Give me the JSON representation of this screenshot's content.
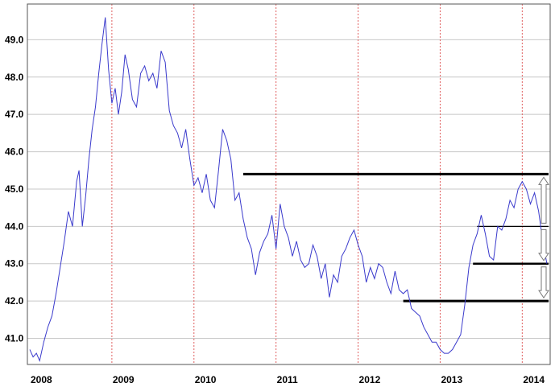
{
  "colors": {
    "line": "#3a3acc",
    "grid": "#c8c8c8",
    "year_grid": "#e06060",
    "level_line": "#000000",
    "arrow": "#777777"
  },
  "chart_data": {
    "type": "line",
    "title": "",
    "xlabel": "",
    "ylabel": "",
    "xlim": [
      2008.0,
      2014.35
    ],
    "ylim": [
      40.3,
      50.0
    ],
    "grid": true,
    "legend": "none",
    "yticks": [
      41.0,
      42.0,
      43.0,
      44.0,
      45.0,
      46.0,
      47.0,
      48.0,
      49.0
    ],
    "ytick_labels": [
      "41.0",
      "42.0",
      "43.0",
      "44.0",
      "45.0",
      "46.0",
      "47.0",
      "48.0",
      "49.0"
    ],
    "xticks": [
      2008,
      2009,
      2010,
      2011,
      2012,
      2013,
      2014
    ],
    "xtick_labels": [
      "2008",
      "2009",
      "2010",
      "2011",
      "2012",
      "2013",
      "2014"
    ],
    "series": [
      {
        "x": [
          2008.0,
          2008.04,
          2008.08,
          2008.12,
          2008.17,
          2008.22,
          2008.27,
          2008.32,
          2008.37,
          2008.42,
          2008.47,
          2008.52,
          2008.57,
          2008.6,
          2008.64,
          2008.68,
          2008.72,
          2008.76,
          2008.8,
          2008.84,
          2008.88,
          2008.92,
          2008.96,
          2009.0,
          2009.04,
          2009.08,
          2009.12,
          2009.16,
          2009.2,
          2009.25,
          2009.3,
          2009.35,
          2009.4,
          2009.45,
          2009.5,
          2009.55,
          2009.6,
          2009.65,
          2009.7,
          2009.75,
          2009.8,
          2009.85,
          2009.9,
          2009.95,
          2010.0,
          2010.05,
          2010.1,
          2010.15,
          2010.2,
          2010.25,
          2010.3,
          2010.35,
          2010.4,
          2010.45,
          2010.5,
          2010.55,
          2010.6,
          2010.65,
          2010.7,
          2010.75,
          2010.8,
          2010.85,
          2010.9,
          2010.95,
          2011.0,
          2011.05,
          2011.1,
          2011.15,
          2011.2,
          2011.25,
          2011.3,
          2011.35,
          2011.4,
          2011.45,
          2011.5,
          2011.55,
          2011.6,
          2011.65,
          2011.7,
          2011.75,
          2011.8,
          2011.85,
          2011.9,
          2011.95,
          2012.0,
          2012.05,
          2012.1,
          2012.15,
          2012.2,
          2012.25,
          2012.3,
          2012.35,
          2012.4,
          2012.45,
          2012.5,
          2012.55,
          2012.6,
          2012.65,
          2012.7,
          2012.75,
          2012.8,
          2012.85,
          2012.9,
          2012.95,
          2013.0,
          2013.05,
          2013.1,
          2013.15,
          2013.2,
          2013.25,
          2013.3,
          2013.35,
          2013.4,
          2013.45,
          2013.5,
          2013.55,
          2013.6,
          2013.65,
          2013.7,
          2013.75,
          2013.8,
          2013.85,
          2013.9,
          2013.95,
          2014.0,
          2014.05,
          2014.1,
          2014.15,
          2014.2,
          2014.25,
          2014.3
        ],
        "values": [
          40.7,
          40.5,
          40.6,
          40.4,
          40.9,
          41.3,
          41.6,
          42.2,
          42.9,
          43.6,
          44.4,
          44.0,
          45.2,
          45.5,
          44.0,
          44.8,
          45.8,
          46.6,
          47.2,
          48.1,
          48.9,
          49.6,
          48.2,
          47.3,
          47.7,
          47.0,
          47.6,
          48.6,
          48.2,
          47.4,
          47.2,
          48.1,
          48.3,
          47.9,
          48.1,
          47.7,
          48.7,
          48.4,
          47.1,
          46.7,
          46.5,
          46.1,
          46.6,
          45.8,
          45.1,
          45.3,
          44.9,
          45.4,
          44.7,
          44.5,
          45.5,
          46.6,
          46.3,
          45.8,
          44.7,
          44.9,
          44.2,
          43.7,
          43.4,
          42.7,
          43.3,
          43.6,
          43.8,
          44.3,
          43.4,
          44.6,
          44.0,
          43.7,
          43.2,
          43.6,
          43.1,
          42.9,
          43.0,
          43.5,
          43.2,
          42.6,
          43.0,
          42.1,
          42.7,
          42.5,
          43.2,
          43.4,
          43.7,
          43.9,
          43.5,
          43.2,
          42.5,
          42.9,
          42.6,
          43.0,
          42.9,
          42.5,
          42.2,
          42.8,
          42.3,
          42.2,
          42.3,
          41.8,
          41.7,
          41.6,
          41.3,
          41.1,
          40.9,
          40.9,
          40.7,
          40.6,
          40.6,
          40.7,
          40.9,
          41.1,
          41.9,
          42.9,
          43.5,
          43.8,
          44.3,
          43.8,
          43.2,
          43.1,
          44.0,
          43.9,
          44.2,
          44.7,
          44.5,
          45.0,
          45.2,
          45.0,
          44.6,
          44.9,
          44.4,
          43.6,
          43.0
        ]
      }
    ],
    "levels": [
      45.4,
      44.0,
      43.0,
      42.0
    ],
    "arrows": [
      "up",
      "down",
      "down"
    ]
  }
}
